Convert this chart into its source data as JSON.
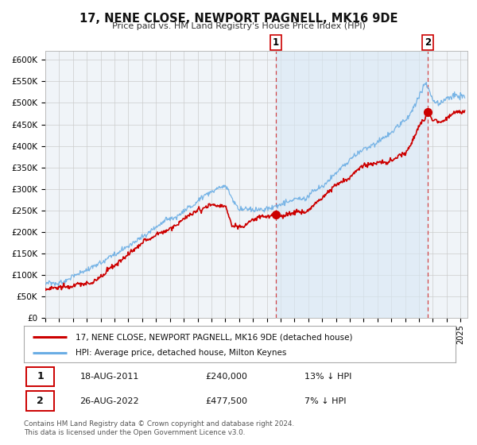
{
  "title": "17, NENE CLOSE, NEWPORT PAGNELL, MK16 9DE",
  "subtitle": "Price paid vs. HM Land Registry's House Price Index (HPI)",
  "ylim": [
    0,
    620000
  ],
  "yticks": [
    0,
    50000,
    100000,
    150000,
    200000,
    250000,
    300000,
    350000,
    400000,
    450000,
    500000,
    550000,
    600000
  ],
  "xlim_start": 1995.0,
  "xlim_end": 2025.5,
  "house_color": "#cc0000",
  "hpi_color": "#6aade4",
  "hpi_fill_color": "#ddeeff",
  "sale1_year": 2011.63,
  "sale1_price": 240000,
  "sale1_label": "1",
  "sale1_date": "18-AUG-2011",
  "sale1_hpi_pct": "13% ↓ HPI",
  "sale2_year": 2022.65,
  "sale2_price": 477500,
  "sale2_label": "2",
  "sale2_date": "26-AUG-2022",
  "sale2_hpi_pct": "7% ↓ HPI",
  "legend_house": "17, NENE CLOSE, NEWPORT PAGNELL, MK16 9DE (detached house)",
  "legend_hpi": "HPI: Average price, detached house, Milton Keynes",
  "footer": "Contains HM Land Registry data © Crown copyright and database right 2024.\nThis data is licensed under the Open Government Licence v3.0.",
  "background_color": "#f0f4f8",
  "grid_color": "#cccccc"
}
